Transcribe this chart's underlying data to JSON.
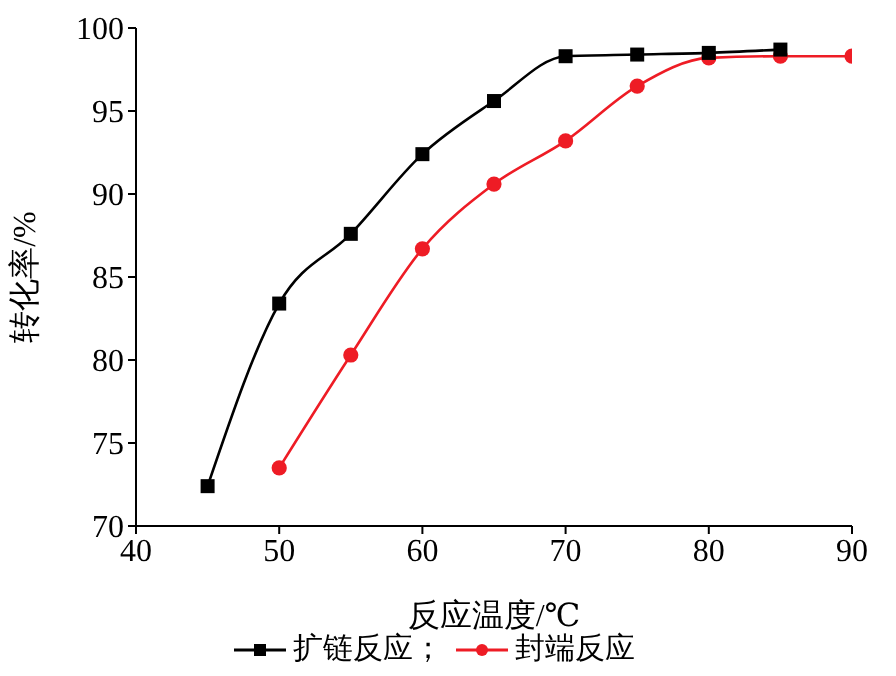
{
  "chart_data": {
    "type": "line",
    "xlabel": "反应温度/℃",
    "ylabel": "转化率/%",
    "xlim": [
      40,
      90
    ],
    "xticks": [
      40,
      50,
      60,
      70,
      80,
      90
    ],
    "ylim": [
      70,
      100
    ],
    "yticks": [
      70,
      75,
      80,
      85,
      90,
      95,
      100
    ],
    "grid": false,
    "legend": "bottom",
    "series": [
      {
        "name": "扩链反应；",
        "color": "#000000",
        "marker": "square",
        "x": [
          45,
          50,
          55,
          60,
          65,
          70,
          75,
          80,
          85
        ],
        "values": [
          72.4,
          83.4,
          87.6,
          92.4,
          95.6,
          98.3,
          98.4,
          98.5,
          98.7
        ]
      },
      {
        "name": "封端反应",
        "color": "#ee1c25",
        "marker": "circle",
        "x": [
          50,
          55,
          60,
          65,
          70,
          75,
          80,
          85,
          90
        ],
        "values": [
          73.5,
          80.3,
          86.7,
          90.6,
          93.2,
          96.5,
          98.2,
          98.3,
          98.3
        ]
      }
    ]
  }
}
